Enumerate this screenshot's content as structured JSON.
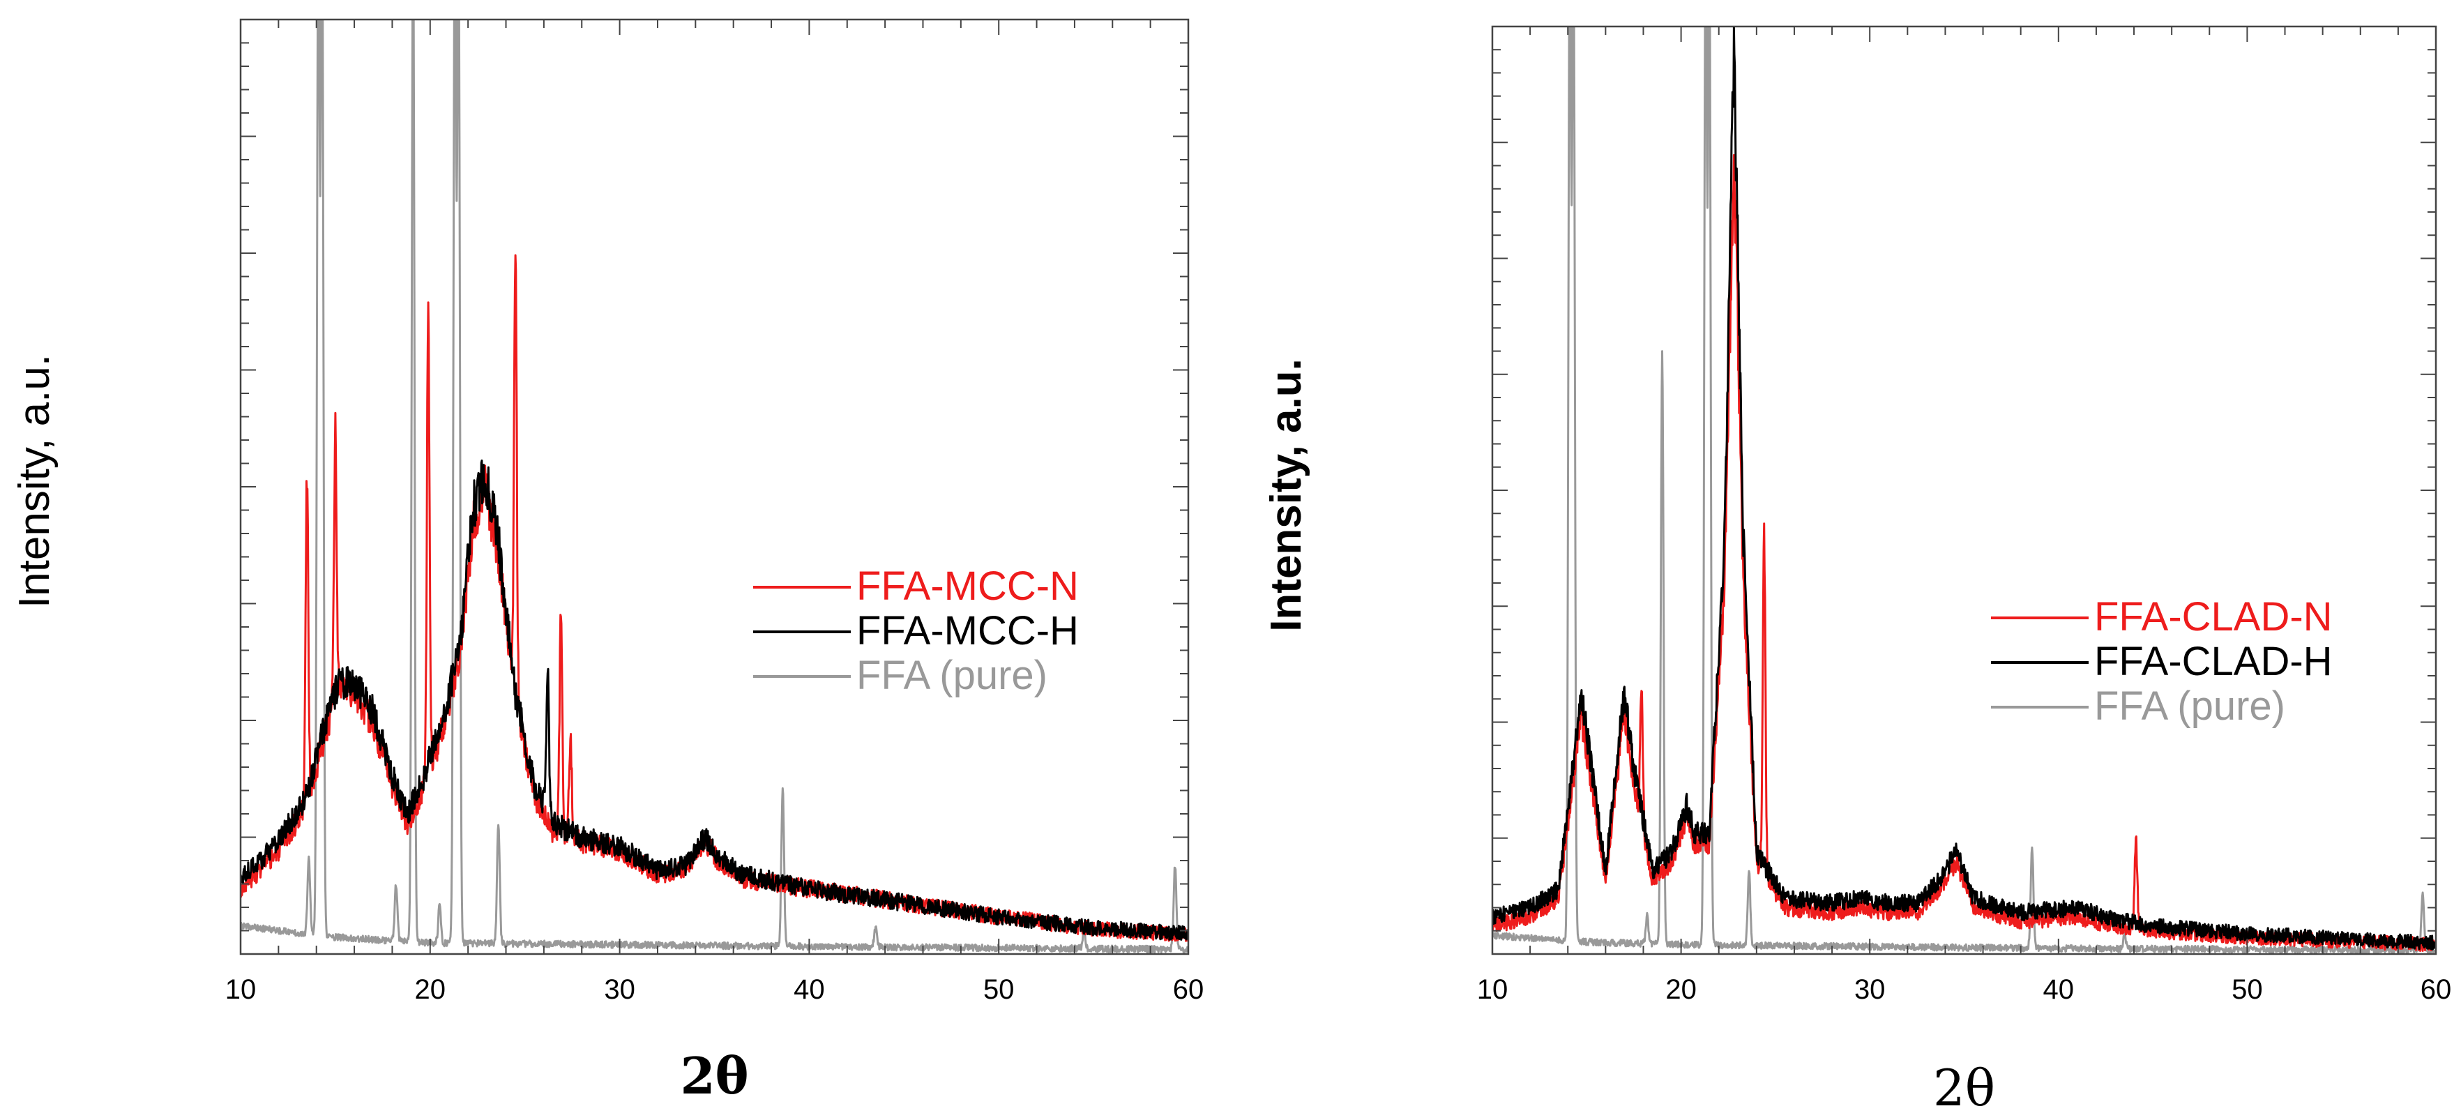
{
  "chart_data": [
    {
      "type": "line",
      "title": "",
      "xlabel": "2θ",
      "xlabel_bold": true,
      "ylabel": "Intensity, a.u.",
      "xlim": [
        10,
        60
      ],
      "ylim": [
        0,
        100
      ],
      "x_ticks": [
        "10",
        "20",
        "30",
        "40",
        "50",
        "60"
      ],
      "y_ticks_labeled": false,
      "legend_position": "center-right",
      "series": [
        {
          "name": "FFA-MCC-N",
          "color": "#ee1c1c",
          "baseline": [
            [
              10,
              7
            ],
            [
              12,
              11
            ],
            [
              13.5,
              16
            ],
            [
              14.5,
              24
            ],
            [
              15.2,
              28.5
            ],
            [
              16,
              28
            ],
            [
              17,
              24.5
            ],
            [
              18,
              18
            ],
            [
              18.8,
              14
            ],
            [
              19.5,
              17
            ],
            [
              20.5,
              23
            ],
            [
              21.5,
              31
            ],
            [
              22.3,
              46
            ],
            [
              22.9,
              50
            ],
            [
              23.5,
              44
            ],
            [
              24.5,
              27
            ],
            [
              25.5,
              17
            ],
            [
              26.5,
              13
            ],
            [
              28,
              12
            ],
            [
              30,
              11
            ],
            [
              32,
              8.5
            ],
            [
              33.5,
              9
            ],
            [
              34.5,
              12
            ],
            [
              35.2,
              10
            ],
            [
              36.5,
              8
            ],
            [
              40,
              7
            ],
            [
              45,
              5.5
            ],
            [
              50,
              4
            ],
            [
              55,
              2.7
            ],
            [
              60,
              2
            ]
          ],
          "spikes": [
            [
              13.5,
              36
            ],
            [
              15.0,
              28
            ],
            [
              19.9,
              48
            ],
            [
              24.5,
              50
            ],
            [
              26.9,
              24
            ],
            [
              27.4,
              11
            ]
          ]
        },
        {
          "name": "FFA-MCC-H",
          "color": "#000000",
          "baseline": [
            [
              10,
              8
            ],
            [
              12,
              12
            ],
            [
              13.5,
              17
            ],
            [
              14.5,
              25
            ],
            [
              15.2,
              29
            ],
            [
              16,
              29
            ],
            [
              17,
              26
            ],
            [
              18,
              19
            ],
            [
              18.8,
              15
            ],
            [
              19.5,
              18
            ],
            [
              20.5,
              24
            ],
            [
              21.5,
              32
            ],
            [
              22.3,
              48
            ],
            [
              22.9,
              51
            ],
            [
              23.5,
              46
            ],
            [
              24.5,
              28
            ],
            [
              25.5,
              18
            ],
            [
              26.5,
              14
            ],
            [
              28,
              12.5
            ],
            [
              30,
              11.5
            ],
            [
              32,
              9
            ],
            [
              33.5,
              9.5
            ],
            [
              34.5,
              12.5
            ],
            [
              35.2,
              10.5
            ],
            [
              36.5,
              8.5
            ],
            [
              40,
              7
            ],
            [
              45,
              5.5
            ],
            [
              50,
              4
            ],
            [
              55,
              2.8
            ],
            [
              60,
              2.2
            ]
          ],
          "spikes": [
            [
              26.2,
              15
            ]
          ]
        },
        {
          "name": "FFA (pure)",
          "color": "#999999",
          "baseline": [
            [
              10,
              3
            ],
            [
              15,
              1.8
            ],
            [
              20,
              1.2
            ],
            [
              30,
              1
            ],
            [
              40,
              0.8
            ],
            [
              60,
              0.5
            ]
          ],
          "spikes": [
            [
              13.6,
              8
            ],
            [
              14.1,
              110
            ],
            [
              14.3,
              110
            ],
            [
              18.2,
              6
            ],
            [
              19.1,
              110
            ],
            [
              21.3,
              110
            ],
            [
              21.5,
              110
            ],
            [
              20.5,
              4
            ],
            [
              23.6,
              13
            ],
            [
              38.6,
              17
            ],
            [
              43.5,
              2
            ],
            [
              54.5,
              2
            ],
            [
              59.3,
              9
            ]
          ]
        }
      ]
    },
    {
      "type": "line",
      "title": "",
      "xlabel": "2θ",
      "xlabel_bold": false,
      "ylabel": "Intensity, a.u.",
      "xlim": [
        10,
        60
      ],
      "ylim": [
        0,
        100
      ],
      "x_ticks": [
        "10",
        "20",
        "30",
        "40",
        "50",
        "60"
      ],
      "y_ticks_labeled": false,
      "legend_position": "center-right",
      "series": [
        {
          "name": "FFA-CLAD-N",
          "color": "#ee1c1c",
          "baseline": [
            [
              10,
              3
            ],
            [
              12,
              4
            ],
            [
              13.5,
              6
            ],
            [
              14.3,
              19
            ],
            [
              14.7,
              26
            ],
            [
              15.2,
              19
            ],
            [
              16,
              8
            ],
            [
              16.6,
              19
            ],
            [
              17,
              26
            ],
            [
              17.5,
              18
            ],
            [
              18.5,
              8
            ],
            [
              19.5,
              10
            ],
            [
              20.3,
              15
            ],
            [
              20.7,
              12
            ],
            [
              21.5,
              12
            ],
            [
              22.3,
              40
            ],
            [
              22.8,
              87
            ],
            [
              23.3,
              40
            ],
            [
              24,
              10
            ],
            [
              25.5,
              5
            ],
            [
              28,
              4.5
            ],
            [
              29.5,
              5
            ],
            [
              31,
              4.5
            ],
            [
              32.5,
              4.5
            ],
            [
              33.5,
              6.5
            ],
            [
              34.6,
              10
            ],
            [
              35.5,
              5
            ],
            [
              38,
              3.5
            ],
            [
              41,
              4
            ],
            [
              42.5,
              3.2
            ],
            [
              45,
              2.5
            ],
            [
              50,
              1.8
            ],
            [
              60,
              1
            ]
          ],
          "spikes": [
            [
              17.9,
              14
            ],
            [
              24.4,
              37
            ],
            [
              44.1,
              10
            ]
          ]
        },
        {
          "name": "FFA-CLAD-H",
          "color": "#000000",
          "baseline": [
            [
              10,
              4
            ],
            [
              12,
              5
            ],
            [
              13.5,
              7
            ],
            [
              14.3,
              21
            ],
            [
              14.7,
              28
            ],
            [
              15.2,
              21
            ],
            [
              16,
              9
            ],
            [
              16.6,
              21
            ],
            [
              17,
              28
            ],
            [
              17.5,
              20
            ],
            [
              18.5,
              9
            ],
            [
              19.5,
              11
            ],
            [
              20.3,
              16
            ],
            [
              20.7,
              13
            ],
            [
              21.5,
              13
            ],
            [
              22.3,
              45
            ],
            [
              22.8,
              98
            ],
            [
              23.3,
              45
            ],
            [
              24,
              11
            ],
            [
              25.5,
              6
            ],
            [
              28,
              5.5
            ],
            [
              29.5,
              6
            ],
            [
              31,
              5.5
            ],
            [
              32.5,
              5.5
            ],
            [
              33.5,
              7.5
            ],
            [
              34.6,
              11
            ],
            [
              35.5,
              6
            ],
            [
              38,
              4.5
            ],
            [
              41,
              5
            ],
            [
              42.5,
              4
            ],
            [
              45,
              3
            ],
            [
              50,
              2.2
            ],
            [
              60,
              1.2
            ]
          ],
          "spikes": []
        },
        {
          "name": "FFA (pure)",
          "color": "#999999",
          "baseline": [
            [
              10,
              2
            ],
            [
              15,
              1.3
            ],
            [
              20,
              1
            ],
            [
              30,
              0.8
            ],
            [
              40,
              0.6
            ],
            [
              60,
              0.4
            ]
          ],
          "spikes": [
            [
              14.1,
              110
            ],
            [
              14.3,
              110
            ],
            [
              18.2,
              3
            ],
            [
              19.0,
              64
            ],
            [
              21.3,
              110
            ],
            [
              21.5,
              110
            ],
            [
              23.6,
              8
            ],
            [
              38.6,
              11
            ],
            [
              43.5,
              1.5
            ],
            [
              59.3,
              6
            ]
          ]
        }
      ]
    }
  ]
}
